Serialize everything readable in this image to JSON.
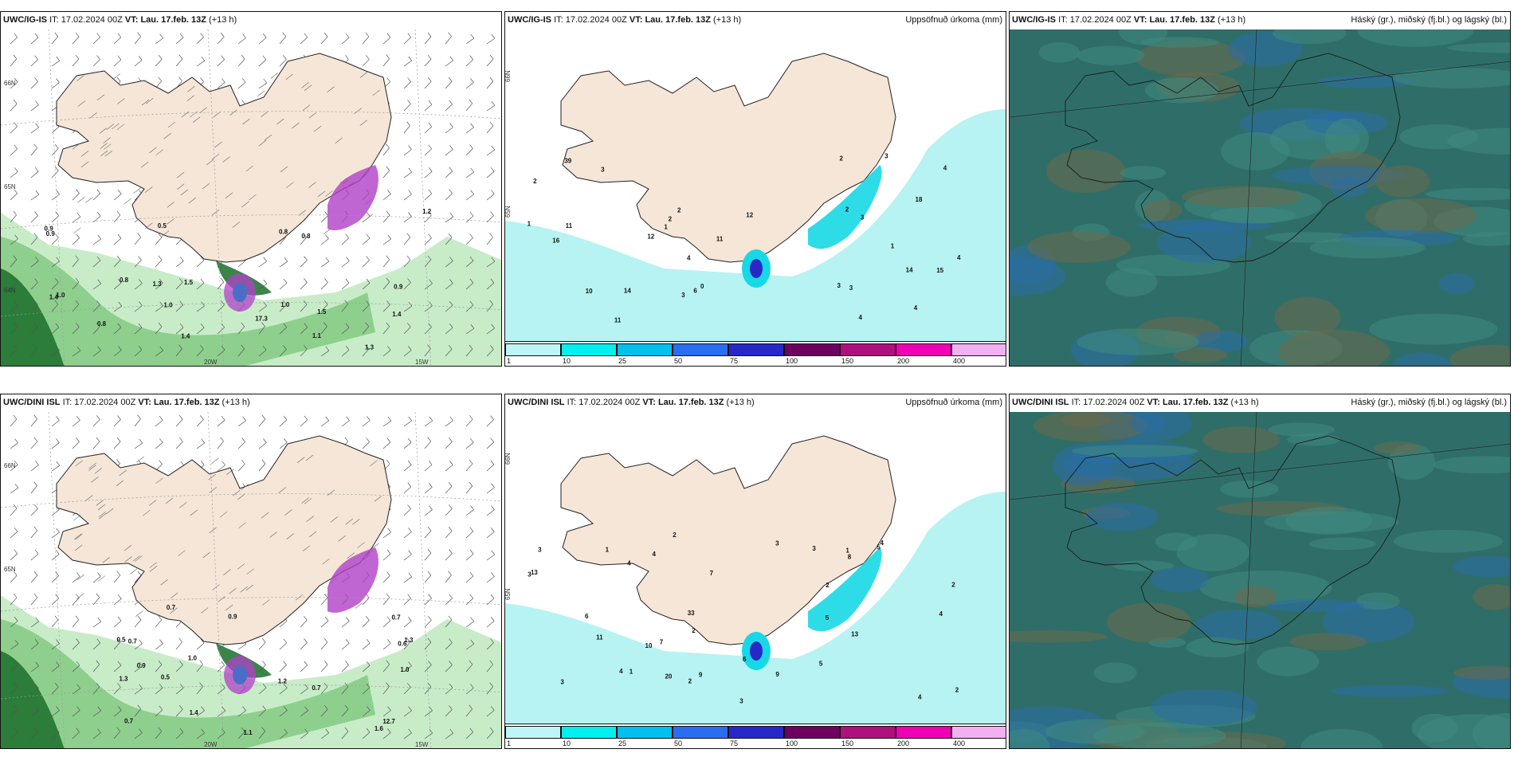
{
  "panels": [
    {
      "row": 0,
      "col": 0,
      "model": "UWC/IG-IS",
      "it_label": "IT:",
      "it_value": "17.02.2024 00Z",
      "vt_label": "VT:",
      "vt_value": "Lau. 17.feb. 13Z",
      "offset": "(+13 h)",
      "right_title": "",
      "kind": "wind",
      "labels": [
        "0.5",
        "0.8",
        "0.9",
        "1.0",
        "1.3",
        "1.4",
        "1.3",
        "1.5",
        "0.8",
        "0.9",
        "0.8",
        "0.9",
        "1.0",
        "0.8",
        "1.1",
        "1.0",
        "17.3",
        "1.4",
        "1.4",
        "1.5",
        "1.2"
      ],
      "axis": [
        "20W",
        "15W",
        "66N",
        "65N",
        "64N"
      ]
    },
    {
      "row": 0,
      "col": 1,
      "model": "UWC/IG-IS",
      "it_label": "IT:",
      "it_value": "17.02.2024 00Z",
      "vt_label": "VT:",
      "vt_value": "Lau. 17.feb. 13Z",
      "offset": "(+13 h)",
      "right_title": "Uppsöfnuð úrkoma (mm)",
      "kind": "precip",
      "labels": [
        "2",
        "2",
        "0",
        "6",
        "3",
        "3",
        "1",
        "3",
        "2",
        "4",
        "4",
        "3",
        "2",
        "4",
        "1",
        "39",
        "18",
        "4",
        "4",
        "11",
        "15",
        "14",
        "14",
        "11",
        "12",
        "12",
        "10",
        "11",
        "3",
        "16",
        "2",
        "3",
        "1"
      ],
      "axis": [
        "66N",
        "65N"
      ]
    },
    {
      "row": 0,
      "col": 2,
      "model": "UWC/IG-IS",
      "it_label": "IT:",
      "it_value": "17.02.2024 00Z",
      "vt_label": "VT:",
      "vt_value": "Lau. 17.feb. 13Z",
      "offset": "(+13 h)",
      "right_title": "Háský (gr.), miðský (fj.bl.) og lágský (bl.)",
      "kind": "cloud",
      "labels": [],
      "axis": []
    },
    {
      "row": 1,
      "col": 0,
      "model": "UWC/DINI ISL",
      "it_label": "IT:",
      "it_value": "17.02.2024 00Z",
      "vt_label": "VT:",
      "vt_value": "Lau. 17.feb. 13Z",
      "offset": "(+13 h)",
      "right_title": "",
      "kind": "wind",
      "labels": [
        "1.0",
        "1.3",
        "1.6",
        "1.3",
        "0.6",
        "0.5",
        "0.7",
        "0.7",
        "0.7",
        "0.7",
        "0.7",
        "0.9",
        "0.5",
        "12.7",
        "1.0",
        "1.1",
        "1.2",
        "1.4",
        "0.9"
      ],
      "axis": [
        "20W",
        "15W",
        "66N",
        "65N"
      ]
    },
    {
      "row": 1,
      "col": 1,
      "model": "UWC/DINI ISL",
      "it_label": "IT:",
      "it_value": "17.02.2024 00Z",
      "vt_label": "VT:",
      "vt_value": "Lau. 17.feb. 13Z",
      "offset": "(+13 h)",
      "right_title": "Uppsöfnuð úrkoma (mm)",
      "kind": "precip",
      "labels": [
        "2",
        "2",
        "10",
        "7",
        "3",
        "3",
        "2",
        "4",
        "4",
        "4",
        "6",
        "3",
        "3",
        "3",
        "5",
        "33",
        "13",
        "9",
        "6",
        "4",
        "5",
        "5",
        "8",
        "7",
        "20",
        "13",
        "11",
        "9",
        "4",
        "4",
        "1",
        "1",
        "2",
        "1",
        "2",
        "2",
        "3"
      ],
      "axis": [
        "66N",
        "65N"
      ]
    },
    {
      "row": 1,
      "col": 2,
      "model": "UWC/DINI ISL",
      "it_label": "IT:",
      "it_value": "17.02.2024 00Z",
      "vt_label": "VT:",
      "vt_value": "Lau. 17.feb. 13Z",
      "offset": "(+13 h)",
      "right_title": "Háský (gr.), miðský (fj.bl.) og lágský (bl.)",
      "kind": "cloud",
      "labels": [],
      "axis": []
    }
  ],
  "legend": {
    "ticks": [
      "1",
      "10",
      "25",
      "50",
      "75",
      "100",
      "150",
      "200",
      "400"
    ],
    "colors": [
      "#bdf6f6",
      "#00f0f0",
      "#00c0ee",
      "#2a6ef0",
      "#2828c8",
      "#6e0060",
      "#b0107e",
      "#f000b4",
      "#f2b0f2"
    ]
  },
  "colors": {
    "land": "#f5e6d8",
    "green_light": "#c8ecc8",
    "green_mid": "#7fc87f",
    "green_dark": "#1a6e2a",
    "purple": "#b040c8",
    "cloud_bg": "#2f6e68",
    "cloud_mid": "#3f8b7f",
    "cloud_brown": "#6b6a4a",
    "cloud_blue": "#2a6ea8",
    "precip_light": "#b7f3f3",
    "precip_cyan": "#17d8e6"
  }
}
